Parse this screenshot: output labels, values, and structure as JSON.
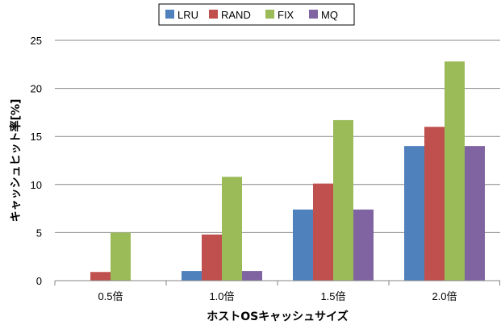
{
  "chart_data": {
    "type": "bar",
    "title": "",
    "xlabel": "ホストOSキャッシュサイズ",
    "ylabel": "キャッシュヒット率[%]",
    "categories": [
      "0.5倍",
      "1.0倍",
      "1.5倍",
      "2.0倍"
    ],
    "series": [
      {
        "name": "LRU",
        "color": "#4f81bd",
        "values": [
          0,
          1.0,
          7.4,
          14.0
        ]
      },
      {
        "name": "RAND",
        "color": "#c0504d",
        "values": [
          0.9,
          4.8,
          10.1,
          16.0
        ]
      },
      {
        "name": "FIX",
        "color": "#9bbb59",
        "values": [
          5.0,
          10.8,
          16.7,
          22.8
        ]
      },
      {
        "name": "MQ",
        "color": "#8064a2",
        "values": [
          0,
          1.0,
          7.4,
          14.0
        ]
      }
    ],
    "ylim": [
      0,
      25
    ],
    "yticks": [
      0,
      5,
      10,
      15,
      20,
      25
    ],
    "grid": true,
    "legend": "top-center"
  }
}
